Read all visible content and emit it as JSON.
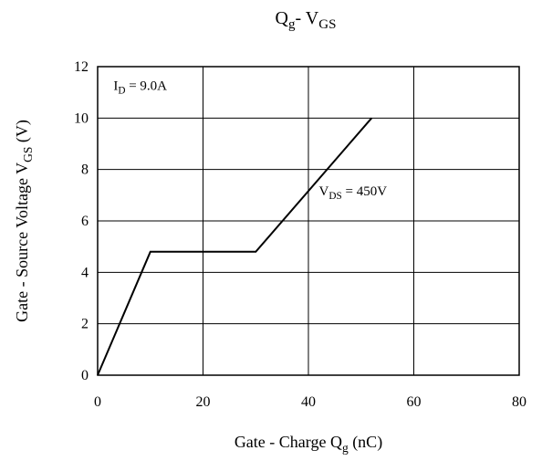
{
  "chart_data": {
    "type": "line",
    "title": {
      "main": "Q",
      "sub": "g",
      "mid": "- V",
      "sub2": "GS"
    },
    "xlabel": {
      "pre": "Gate - Charge Q",
      "sub": "g",
      "post": "  (nC)"
    },
    "ylabel": {
      "pre": "Gate - Source Voltage V",
      "sub": "GS",
      "post": "   (V)"
    },
    "xlim": [
      0,
      80
    ],
    "ylim": [
      0,
      12
    ],
    "xticks": [
      "0",
      "20",
      "40",
      "60",
      "80"
    ],
    "yticks": [
      "0",
      "2",
      "4",
      "6",
      "8",
      "10",
      "12"
    ],
    "grid": true,
    "series": [
      {
        "x": [
          0,
          10,
          30,
          52
        ],
        "y": [
          0,
          4.8,
          4.8,
          10
        ]
      }
    ],
    "annotations": [
      {
        "pre": "I",
        "sub": "D",
        "post": " = 9.0A",
        "x": 3,
        "y": 11.1
      },
      {
        "pre": "V",
        "sub": "DS",
        "post": " = 450V",
        "x": 42,
        "y": 7.0
      }
    ]
  }
}
